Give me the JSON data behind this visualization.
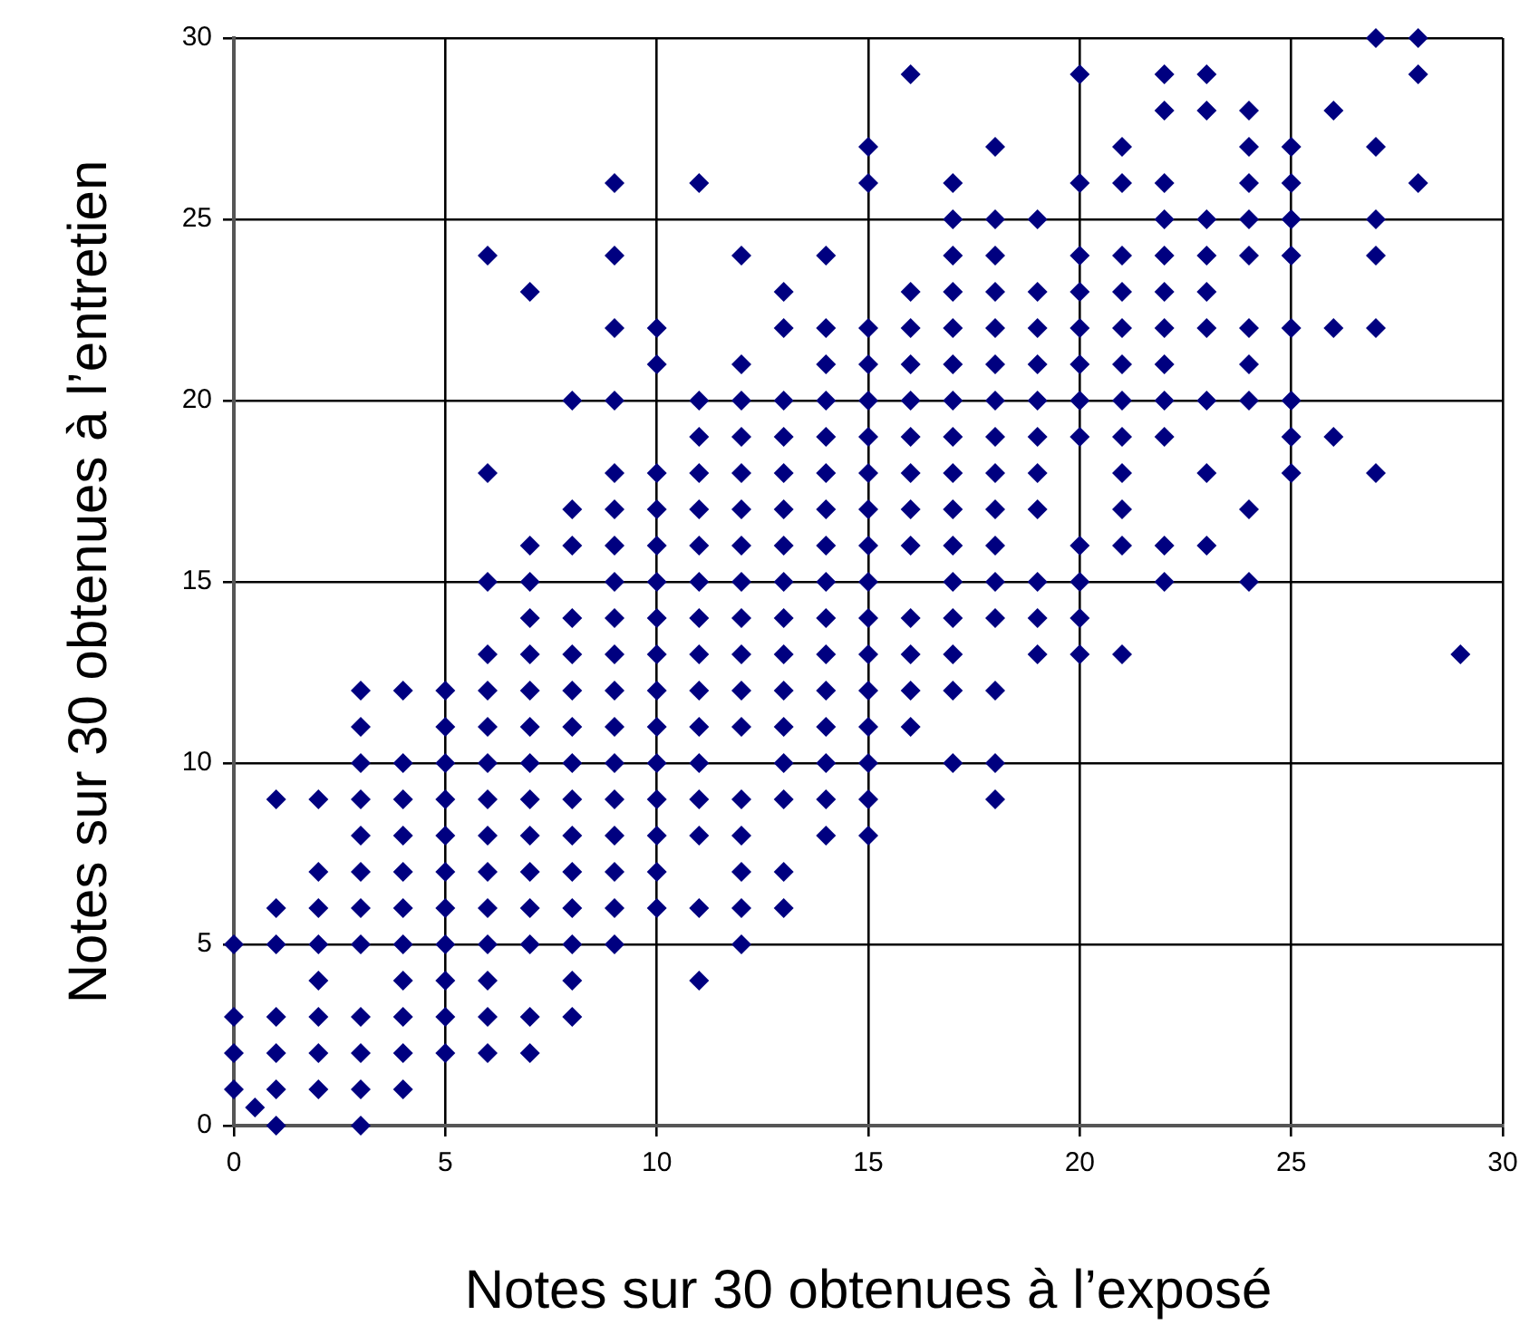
{
  "chart_data": {
    "type": "scatter",
    "xlabel": "Notes sur 30 obtenues à l’exposé",
    "ylabel": "Notes sur 30 obtenues à l’entretien",
    "xlim": [
      0,
      30
    ],
    "xticks": [
      0,
      5,
      10,
      15,
      20,
      25,
      30
    ],
    "ylim": [
      0,
      30
    ],
    "yticks": [
      0,
      5,
      10,
      15,
      20,
      25,
      30
    ],
    "grid": true,
    "legend": false,
    "marker": "diamond",
    "series": [
      {
        "color": "#000080",
        "x": [
          1,
          3,
          0.5,
          0,
          1,
          2,
          3,
          4,
          0,
          1,
          2,
          3,
          4,
          5,
          6,
          7,
          0,
          1,
          2,
          3,
          4,
          5,
          6,
          7,
          8,
          2,
          4,
          5,
          6,
          8,
          11,
          0,
          1,
          2,
          3,
          4,
          5,
          6,
          7,
          8,
          9,
          12,
          1,
          2,
          3,
          4,
          5,
          6,
          7,
          8,
          9,
          10,
          11,
          12,
          13,
          2,
          3,
          4,
          5,
          6,
          7,
          8,
          9,
          10,
          12,
          13,
          3,
          4,
          5,
          6,
          7,
          8,
          9,
          10,
          11,
          12,
          14,
          15,
          1,
          2,
          3,
          4,
          5,
          6,
          7,
          8,
          9,
          10,
          11,
          12,
          13,
          14,
          15,
          18,
          3,
          4,
          5,
          6,
          7,
          8,
          9,
          10,
          11,
          13,
          14,
          15,
          17,
          18,
          3,
          5,
          6,
          7,
          8,
          9,
          10,
          11,
          12,
          13,
          14,
          15,
          16,
          3,
          4,
          5,
          6,
          7,
          8,
          9,
          10,
          11,
          12,
          13,
          14,
          15,
          16,
          17,
          18,
          6,
          7,
          8,
          9,
          10,
          11,
          12,
          13,
          14,
          15,
          16,
          17,
          19,
          20,
          21,
          29,
          7,
          8,
          9,
          10,
          11,
          12,
          13,
          14,
          15,
          16,
          17,
          18,
          19,
          20,
          6,
          7,
          9,
          10,
          11,
          12,
          13,
          14,
          15,
          17,
          18,
          19,
          20,
          22,
          24,
          7,
          8,
          9,
          10,
          11,
          12,
          13,
          14,
          15,
          16,
          17,
          18,
          20,
          21,
          22,
          23,
          8,
          9,
          10,
          11,
          12,
          13,
          14,
          15,
          16,
          17,
          18,
          19,
          21,
          24,
          6,
          9,
          10,
          11,
          12,
          13,
          14,
          15,
          16,
          17,
          18,
          19,
          21,
          23,
          25,
          27,
          11,
          12,
          13,
          14,
          15,
          16,
          17,
          18,
          19,
          20,
          21,
          22,
          25,
          26,
          8,
          9,
          11,
          12,
          13,
          14,
          15,
          16,
          17,
          18,
          19,
          20,
          21,
          22,
          23,
          24,
          25,
          10,
          12,
          14,
          15,
          16,
          17,
          18,
          19,
          20,
          21,
          22,
          24,
          9,
          10,
          13,
          14,
          15,
          16,
          17,
          18,
          19,
          20,
          21,
          22,
          23,
          24,
          25,
          26,
          27,
          7,
          13,
          16,
          17,
          18,
          19,
          20,
          21,
          22,
          23,
          6,
          9,
          12,
          14,
          17,
          18,
          20,
          21,
          22,
          23,
          24,
          25,
          27,
          17,
          18,
          19,
          22,
          23,
          24,
          25,
          27,
          9,
          11,
          15,
          17,
          20,
          21,
          22,
          24,
          25,
          28,
          15,
          18,
          21,
          24,
          25,
          27,
          22,
          23,
          24,
          26,
          16,
          20,
          22,
          23,
          28,
          27,
          28
        ],
        "values": [
          0,
          0,
          0.5,
          1,
          1,
          1,
          1,
          1,
          2,
          2,
          2,
          2,
          2,
          2,
          2,
          2,
          3,
          3,
          3,
          3,
          3,
          3,
          3,
          3,
          3,
          4,
          4,
          4,
          4,
          4,
          4,
          5,
          5,
          5,
          5,
          5,
          5,
          5,
          5,
          5,
          5,
          5,
          6,
          6,
          6,
          6,
          6,
          6,
          6,
          6,
          6,
          6,
          6,
          6,
          6,
          7,
          7,
          7,
          7,
          7,
          7,
          7,
          7,
          7,
          7,
          7,
          8,
          8,
          8,
          8,
          8,
          8,
          8,
          8,
          8,
          8,
          8,
          8,
          9,
          9,
          9,
          9,
          9,
          9,
          9,
          9,
          9,
          9,
          9,
          9,
          9,
          9,
          9,
          9,
          10,
          10,
          10,
          10,
          10,
          10,
          10,
          10,
          10,
          10,
          10,
          10,
          10,
          10,
          11,
          11,
          11,
          11,
          11,
          11,
          11,
          11,
          11,
          11,
          11,
          11,
          11,
          12,
          12,
          12,
          12,
          12,
          12,
          12,
          12,
          12,
          12,
          12,
          12,
          12,
          12,
          12,
          12,
          13,
          13,
          13,
          13,
          13,
          13,
          13,
          13,
          13,
          13,
          13,
          13,
          13,
          13,
          13,
          13,
          14,
          14,
          14,
          14,
          14,
          14,
          14,
          14,
          14,
          14,
          14,
          14,
          14,
          14,
          15,
          15,
          15,
          15,
          15,
          15,
          15,
          15,
          15,
          15,
          15,
          15,
          15,
          15,
          15,
          16,
          16,
          16,
          16,
          16,
          16,
          16,
          16,
          16,
          16,
          16,
          16,
          16,
          16,
          16,
          16,
          17,
          17,
          17,
          17,
          17,
          17,
          17,
          17,
          17,
          17,
          17,
          17,
          17,
          17,
          18,
          18,
          18,
          18,
          18,
          18,
          18,
          18,
          18,
          18,
          18,
          18,
          18,
          18,
          18,
          18,
          19,
          19,
          19,
          19,
          19,
          19,
          19,
          19,
          19,
          19,
          19,
          19,
          19,
          19,
          20,
          20,
          20,
          20,
          20,
          20,
          20,
          20,
          20,
          20,
          20,
          20,
          20,
          20,
          20,
          20,
          20,
          21,
          21,
          21,
          21,
          21,
          21,
          21,
          21,
          21,
          21,
          21,
          21,
          22,
          22,
          22,
          22,
          22,
          22,
          22,
          22,
          22,
          22,
          22,
          22,
          22,
          22,
          22,
          22,
          22,
          23,
          23,
          23,
          23,
          23,
          23,
          23,
          23,
          23,
          23,
          24,
          24,
          24,
          24,
          24,
          24,
          24,
          24,
          24,
          24,
          24,
          24,
          24,
          25,
          25,
          25,
          25,
          25,
          25,
          25,
          25,
          26,
          26,
          26,
          26,
          26,
          26,
          26,
          26,
          26,
          26,
          27,
          27,
          27,
          27,
          27,
          27,
          28,
          28,
          28,
          28,
          29,
          29,
          29,
          29,
          29,
          30,
          30
        ]
      }
    ]
  }
}
